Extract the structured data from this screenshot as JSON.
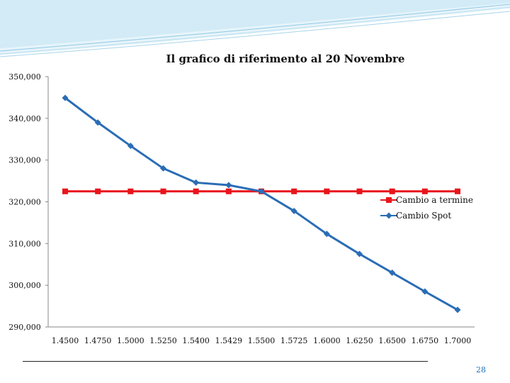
{
  "page_number": "28",
  "colors": {
    "spot": "#2a6db5",
    "termine": "#e8141b",
    "banner": "#cfe9f5"
  },
  "chart_data": {
    "type": "line",
    "title": "Il grafico di riferimento al 20 Novembre",
    "xlabel": "",
    "ylabel": "",
    "categories": [
      "1.4500",
      "1.4750",
      "1.5000",
      "1.5250",
      "1.5400",
      "1.5429",
      "1.5500",
      "1.5725",
      "1.6000",
      "1.6250",
      "1.6500",
      "1.6750",
      "1.7000"
    ],
    "ylim": [
      290000,
      350000
    ],
    "yticks": [
      "350,000",
      "340,000",
      "330,000",
      "320,000",
      "310,000",
      "300,000",
      "290,000"
    ],
    "ytick_values": [
      350000,
      340000,
      330000,
      320000,
      310000,
      300000,
      290000
    ],
    "grid": false,
    "legend_position": "right",
    "series": [
      {
        "name": "Cambio a termine",
        "color": "#e8141b",
        "marker": "square",
        "values": [
          322500,
          322500,
          322500,
          322500,
          322500,
          322500,
          322500,
          322500,
          322500,
          322500,
          322500,
          322500,
          322500
        ]
      },
      {
        "name": "Cambio Spot",
        "color": "#2a6db5",
        "marker": "diamond",
        "values": [
          344900,
          339000,
          333400,
          328000,
          324600,
          324000,
          322500,
          317800,
          312300,
          307500,
          303000,
          298500,
          294100
        ]
      }
    ]
  }
}
